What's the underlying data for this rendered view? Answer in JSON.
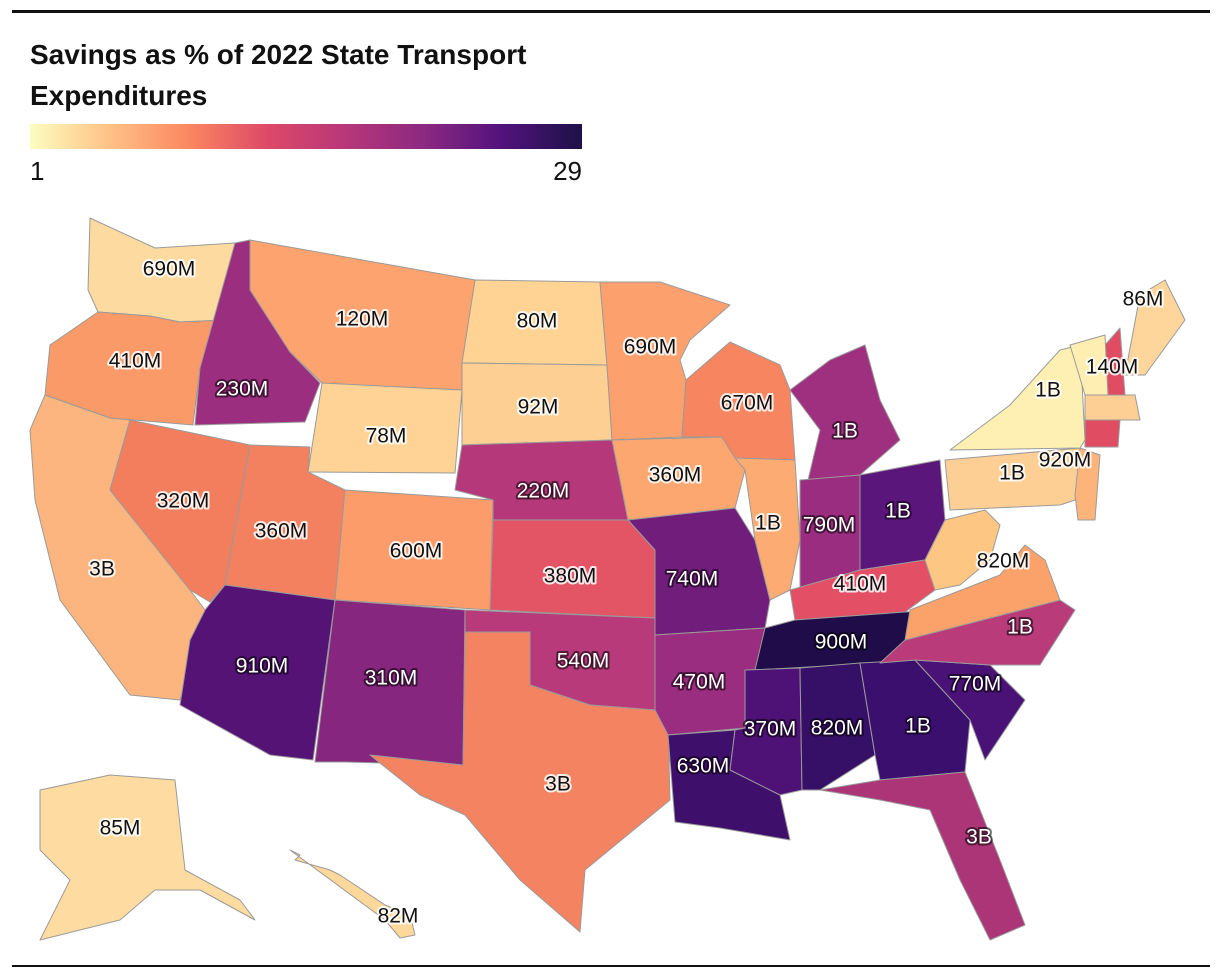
{
  "chart": {
    "title": "Savings as % of 2022 State Transport Expenditures",
    "legend": {
      "min_label": "1",
      "max_label": "29",
      "stops": [
        "#fcfdbf",
        "#fec287",
        "#fb8861",
        "#de4968",
        "#b73779",
        "#8c2981",
        "#51127c",
        "#1d1147"
      ]
    }
  },
  "chart_data": {
    "type": "choropleth",
    "title": "Savings as % of 2022 State Transport Expenditures",
    "color_scale": {
      "min": 1,
      "max": 29,
      "palette": "magma (reversed)"
    },
    "states": [
      {
        "state": "WA",
        "label": "690M",
        "color": "#fddba0"
      },
      {
        "state": "OR",
        "label": "410M",
        "color": "#fa9a68"
      },
      {
        "state": "CA",
        "label": "3B",
        "color": "#fcb57e"
      },
      {
        "state": "ID",
        "label": "230M",
        "color": "#9c2e7f"
      },
      {
        "state": "NV",
        "label": "320M",
        "color": "#f37e5e"
      },
      {
        "state": "MT",
        "label": "120M",
        "color": "#fca36f"
      },
      {
        "state": "WY",
        "label": "78M",
        "color": "#fed395"
      },
      {
        "state": "UT",
        "label": "360M",
        "color": "#f3805f"
      },
      {
        "state": "AZ",
        "label": "910M",
        "color": "#551375"
      },
      {
        "state": "CO",
        "label": "600M",
        "color": "#fb9c6a"
      },
      {
        "state": "NM",
        "label": "310M",
        "color": "#86267f"
      },
      {
        "state": "ND",
        "label": "80M",
        "color": "#fed394"
      },
      {
        "state": "SD",
        "label": "92M",
        "color": "#fdcf93"
      },
      {
        "state": "NE",
        "label": "220M",
        "color": "#b5397a"
      },
      {
        "state": "KS",
        "label": "380M",
        "color": "#e35464"
      },
      {
        "state": "OK",
        "label": "540M",
        "color": "#b93a7b"
      },
      {
        "state": "TX",
        "label": "3B",
        "color": "#f48361"
      },
      {
        "state": "MN",
        "label": "690M",
        "color": "#fca16e"
      },
      {
        "state": "IA",
        "label": "360M",
        "color": "#fca670"
      },
      {
        "state": "MO",
        "label": "740M",
        "color": "#701d7c"
      },
      {
        "state": "AR",
        "label": "470M",
        "color": "#9a2d80"
      },
      {
        "state": "LA",
        "label": "630M",
        "color": "#3f0f6c"
      },
      {
        "state": "WI",
        "label": "670M",
        "color": "#f78660"
      },
      {
        "state": "IL",
        "label": "1B",
        "color": "#fcab73"
      },
      {
        "state": "MI",
        "label": "1B",
        "color": "#9f2f7f"
      },
      {
        "state": "IN",
        "label": "790M",
        "color": "#9a2d80"
      },
      {
        "state": "OH",
        "label": "1B",
        "color": "#5a167b"
      },
      {
        "state": "KY",
        "label": "410M",
        "color": "#e34f65"
      },
      {
        "state": "TN",
        "label": "900M",
        "color": "#1f0c48"
      },
      {
        "state": "MS",
        "label": "370M",
        "color": "#4e1277"
      },
      {
        "state": "AL",
        "label": "820M",
        "color": "#360f66"
      },
      {
        "state": "GA",
        "label": "1B",
        "color": "#3a0f6e"
      },
      {
        "state": "FL",
        "label": "3B",
        "color": "#ac3578"
      },
      {
        "state": "SC",
        "label": "770M",
        "color": "#4a1276"
      },
      {
        "state": "NC",
        "label": "1B",
        "color": "#b93b7a"
      },
      {
        "state": "VA",
        "label": "820M",
        "color": "#fba26b"
      },
      {
        "state": "WV",
        "label": "",
        "color": "#fec683"
      },
      {
        "state": "PA",
        "label": "1B",
        "color": "#fecf95"
      },
      {
        "state": "NY",
        "label": "1B",
        "color": "#fef0b3"
      },
      {
        "state": "NJ",
        "label": "920M",
        "color": "#fcb47a"
      },
      {
        "state": "ME",
        "label": "86M",
        "color": "#fed59a"
      },
      {
        "state": "NH",
        "label": "140M",
        "color": "#e04d62"
      },
      {
        "state": "VT",
        "label": "",
        "color": "#feeeb1"
      },
      {
        "state": "MA",
        "label": "",
        "color": "#fdcf95"
      },
      {
        "state": "CT",
        "label": "",
        "color": "#e04d63"
      },
      {
        "state": "AK",
        "label": "85M",
        "color": "#fedba0"
      },
      {
        "state": "HI",
        "label": "82M",
        "color": "#fdd89a"
      }
    ]
  }
}
